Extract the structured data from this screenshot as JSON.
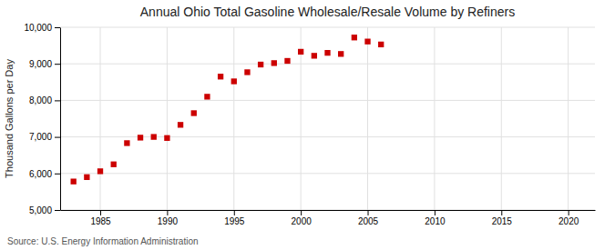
{
  "chart_data": {
    "type": "scatter",
    "title": "Annual Ohio Total Gasoline Wholesale/Resale Volume by Refiners",
    "ylabel": "Thousand Gallons per Day",
    "annotations": [
      "Source: U.S. Energy Information Administration"
    ],
    "x": [
      1983,
      1984,
      1985,
      1986,
      1987,
      1988,
      1989,
      1990,
      1991,
      1992,
      1993,
      1994,
      1995,
      1996,
      1997,
      1998,
      1999,
      2000,
      2001,
      2002,
      2003,
      2004,
      2005,
      2006
    ],
    "values": [
      5780,
      5900,
      6060,
      6250,
      6830,
      6980,
      7000,
      6970,
      7330,
      7650,
      8100,
      8650,
      8520,
      8770,
      8980,
      9020,
      9080,
      9330,
      9220,
      9300,
      9270,
      9720,
      9610,
      9530
    ],
    "color": "#cc0000",
    "marker": "square",
    "xlim": [
      1982,
      2022
    ],
    "xticks": [
      1985,
      1990,
      1995,
      2000,
      2005,
      2010,
      2015,
      2020
    ],
    "ylim": [
      5000,
      10000
    ],
    "yticks": [
      {
        "value": 5000,
        "label": "5,000"
      },
      {
        "value": 6000,
        "label": "6,000"
      },
      {
        "value": 7000,
        "label": "7,000"
      },
      {
        "value": 8000,
        "label": "8,000"
      },
      {
        "value": 9000,
        "label": "9,000"
      },
      {
        "value": 10000,
        "label": "10,000"
      }
    ],
    "grid": true
  }
}
